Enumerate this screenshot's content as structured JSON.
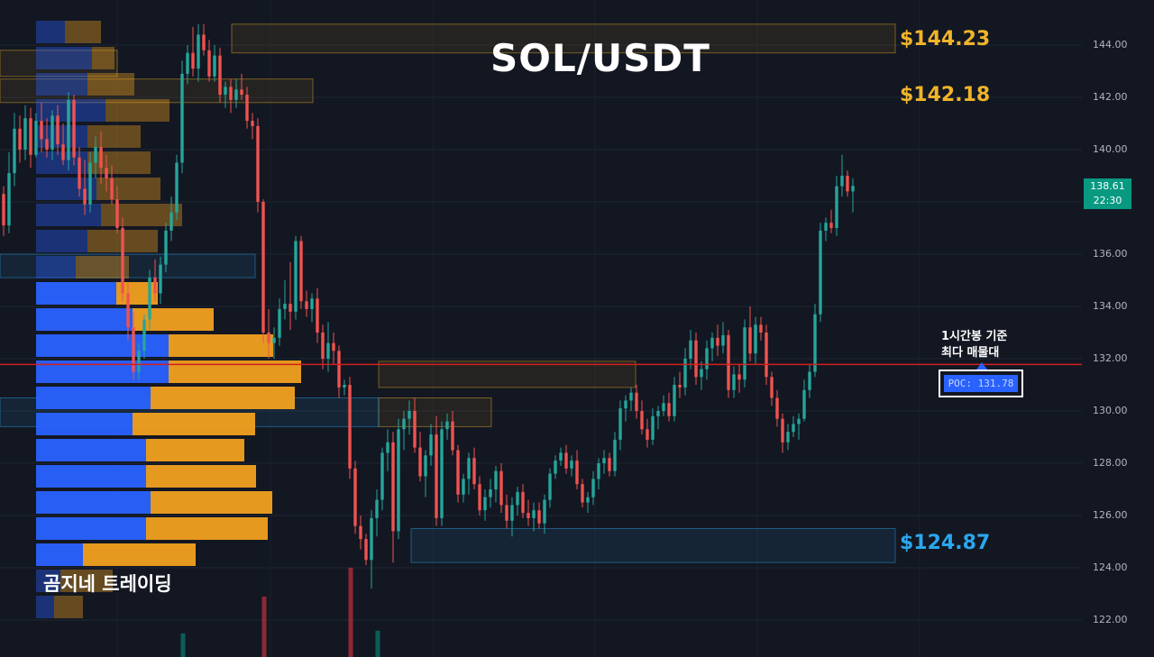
{
  "chart_data": {
    "type": "candlestick",
    "title": "SOL/USDT",
    "ylim": [
      121.5,
      145.5
    ],
    "y_ticks": [
      "144.00",
      "142.00",
      "140.00",
      "138.00",
      "136.00",
      "134.00",
      "132.00",
      "130.00",
      "128.00",
      "126.00",
      "124.00",
      "122.00"
    ],
    "last_price": {
      "price": "138.61",
      "time": "22:30"
    },
    "levels": [
      {
        "label": "$144.23",
        "price": 144.23,
        "color": "#f0b429"
      },
      {
        "label": "$142.18",
        "price": 142.18,
        "color": "#f0b429"
      },
      {
        "label": "$124.87",
        "price": 124.87,
        "color": "#2aa7ee"
      }
    ],
    "poc": {
      "label": "POC: 131.78",
      "price": 131.78,
      "note_line1": "1시간봉 기준",
      "note_line2": "최다 매물대"
    },
    "volume_profile": {
      "bin_prices": [
        144.5,
        143.5,
        142.5,
        141.5,
        140.5,
        139.5,
        138.5,
        137.5,
        136.5,
        135.5,
        134.5,
        133.5,
        132.5,
        131.5,
        130.5,
        129.5,
        128.5,
        127.5,
        126.5,
        125.5,
        124.5,
        123.5,
        122.5
      ],
      "buy": [
        32,
        62,
        57,
        77,
        57,
        57,
        67,
        72,
        57,
        44,
        89,
        107,
        147,
        147,
        127,
        107,
        122,
        122,
        127,
        122,
        52,
        27,
        20
      ],
      "sell": [
        40,
        25,
        52,
        71,
        59,
        70,
        71,
        90,
        78,
        59,
        46,
        90,
        116,
        147,
        160,
        136,
        109,
        122,
        135,
        135,
        125,
        58,
        32
      ],
      "highlighted_bins": [
        10,
        11,
        12,
        13,
        14,
        15,
        16,
        17,
        18,
        19,
        20
      ]
    },
    "zones": [
      {
        "price_top": 144.8,
        "price_bottom": 143.7,
        "color": "#f0b429"
      },
      {
        "price_top": 142.7,
        "price_bottom": 141.8,
        "color": "#f0b429"
      },
      {
        "price_top": 131.9,
        "price_bottom": 130.9,
        "color": "#f0b429"
      },
      {
        "price_top": 130.5,
        "price_bottom": 129.4,
        "color": "#f0b429"
      },
      {
        "price_top": 125.5,
        "price_bottom": 124.2,
        "color": "#2aa7ee"
      },
      {
        "price_top": 143.8,
        "price_bottom": 142.8,
        "color": "#f0b429"
      },
      {
        "price_top": 136.0,
        "price_bottom": 135.1,
        "color": "#2aa7ee"
      },
      {
        "price_top": 130.5,
        "price_bottom": 129.4,
        "color": "#2aa7ee"
      }
    ],
    "candles": [
      [
        138.3,
        138.6,
        136.7,
        137.1
      ],
      [
        137.1,
        139.9,
        136.8,
        139.1
      ],
      [
        139.1,
        141.4,
        138.6,
        140.8
      ],
      [
        140.8,
        141.3,
        139.5,
        140.0
      ],
      [
        140.0,
        141.7,
        139.6,
        141.2
      ],
      [
        141.2,
        141.6,
        139.3,
        139.8
      ],
      [
        139.8,
        141.4,
        139.7,
        141.1
      ],
      [
        141.1,
        141.8,
        139.9,
        140.4
      ],
      [
        140.4,
        141.2,
        139.7,
        140.0
      ],
      [
        140.0,
        141.5,
        139.6,
        141.3
      ],
      [
        141.3,
        141.7,
        139.8,
        140.2
      ],
      [
        140.2,
        141.0,
        139.4,
        139.6
      ],
      [
        139.6,
        142.2,
        139.2,
        141.9
      ],
      [
        141.9,
        142.1,
        139.4,
        139.7
      ],
      [
        139.7,
        140.1,
        138.2,
        138.5
      ],
      [
        138.5,
        139.6,
        137.5,
        137.9
      ],
      [
        137.9,
        139.9,
        137.6,
        139.5
      ],
      [
        139.5,
        140.5,
        138.9,
        140.1
      ],
      [
        140.1,
        140.7,
        138.7,
        139.3
      ],
      [
        139.3,
        139.8,
        138.4,
        138.9
      ],
      [
        138.9,
        139.4,
        137.9,
        138.1
      ],
      [
        138.1,
        138.6,
        136.8,
        137.0
      ],
      [
        137.0,
        137.4,
        134.2,
        134.5
      ],
      [
        134.5,
        134.9,
        132.7,
        133.2
      ],
      [
        133.2,
        133.8,
        131.2,
        131.5
      ],
      [
        131.5,
        132.6,
        131.2,
        132.3
      ],
      [
        132.3,
        133.7,
        132.0,
        133.5
      ],
      [
        133.5,
        135.4,
        133.1,
        135.1
      ],
      [
        135.1,
        135.8,
        134.2,
        134.5
      ],
      [
        134.5,
        135.9,
        134.1,
        135.6
      ],
      [
        135.6,
        137.2,
        135.3,
        136.9
      ],
      [
        136.9,
        138.2,
        136.5,
        137.6
      ],
      [
        137.6,
        139.8,
        137.3,
        139.5
      ],
      [
        139.5,
        143.4,
        139.1,
        142.9
      ],
      [
        142.9,
        144.0,
        142.5,
        143.7
      ],
      [
        143.7,
        144.7,
        142.8,
        143.1
      ],
      [
        143.1,
        144.8,
        142.6,
        144.4
      ],
      [
        144.4,
        144.8,
        143.6,
        143.8
      ],
      [
        143.8,
        144.2,
        142.6,
        142.8
      ],
      [
        142.8,
        144.0,
        142.6,
        143.6
      ],
      [
        143.6,
        143.9,
        141.8,
        142.1
      ],
      [
        142.1,
        142.6,
        141.6,
        142.4
      ],
      [
        142.4,
        142.7,
        141.4,
        141.9
      ],
      [
        141.9,
        142.7,
        141.6,
        142.3
      ],
      [
        142.3,
        142.9,
        141.9,
        142.1
      ],
      [
        142.1,
        142.4,
        140.8,
        141.1
      ],
      [
        141.1,
        141.4,
        140.4,
        140.9
      ],
      [
        140.9,
        141.2,
        137.6,
        138.0
      ],
      [
        138.0,
        138.1,
        132.6,
        133.0
      ],
      [
        133.0,
        133.9,
        132.0,
        132.6
      ],
      [
        132.6,
        133.2,
        132.0,
        132.8
      ],
      [
        132.8,
        134.3,
        132.5,
        133.9
      ],
      [
        133.9,
        135.0,
        133.5,
        134.1
      ],
      [
        134.1,
        135.7,
        133.1,
        133.8
      ],
      [
        133.8,
        136.7,
        133.5,
        136.5
      ],
      [
        136.5,
        136.7,
        133.9,
        134.2
      ],
      [
        134.2,
        134.6,
        133.6,
        133.9
      ],
      [
        133.9,
        134.5,
        133.4,
        134.3
      ],
      [
        134.3,
        134.7,
        132.6,
        133.0
      ],
      [
        133.0,
        133.3,
        131.6,
        132.0
      ],
      [
        132.0,
        133.4,
        131.5,
        132.6
      ],
      [
        132.6,
        133.0,
        131.8,
        132.3
      ],
      [
        132.3,
        132.5,
        130.5,
        130.9
      ],
      [
        130.9,
        131.2,
        130.6,
        131.0
      ],
      [
        131.0,
        131.3,
        127.4,
        127.8
      ],
      [
        127.8,
        128.1,
        125.3,
        125.6
      ],
      [
        125.6,
        126.0,
        124.7,
        125.1
      ],
      [
        125.1,
        125.3,
        124.1,
        124.3
      ],
      [
        124.3,
        126.2,
        123.2,
        125.9
      ],
      [
        125.9,
        127.0,
        125.2,
        126.6
      ],
      [
        126.6,
        128.6,
        126.2,
        128.4
      ],
      [
        128.4,
        129.3,
        127.7,
        128.8
      ],
      [
        128.8,
        129.2,
        124.2,
        125.4
      ],
      [
        125.4,
        129.7,
        125.1,
        129.3
      ],
      [
        129.3,
        130.0,
        128.5,
        129.7
      ],
      [
        129.7,
        130.4,
        129.1,
        130.0
      ],
      [
        130.0,
        130.5,
        128.4,
        128.6
      ],
      [
        128.6,
        129.2,
        127.3,
        127.5
      ],
      [
        127.5,
        128.5,
        126.7,
        128.3
      ],
      [
        128.3,
        129.5,
        127.9,
        129.1
      ],
      [
        129.1,
        129.8,
        125.6,
        125.9
      ],
      [
        125.9,
        129.6,
        125.6,
        129.3
      ],
      [
        129.3,
        129.9,
        128.9,
        129.6
      ],
      [
        129.6,
        130.0,
        128.3,
        128.5
      ],
      [
        128.5,
        128.7,
        126.5,
        126.8
      ],
      [
        126.8,
        127.6,
        126.5,
        127.4
      ],
      [
        127.4,
        128.4,
        126.8,
        128.2
      ],
      [
        128.2,
        128.6,
        127.0,
        127.2
      ],
      [
        127.2,
        127.5,
        126.0,
        126.2
      ],
      [
        126.2,
        127.0,
        125.8,
        126.7
      ],
      [
        126.7,
        127.4,
        126.3,
        127.0
      ],
      [
        127.0,
        127.9,
        126.5,
        127.7
      ],
      [
        127.7,
        128.0,
        126.1,
        126.4
      ],
      [
        126.4,
        126.8,
        125.5,
        125.8
      ],
      [
        125.8,
        126.7,
        125.2,
        126.4
      ],
      [
        126.4,
        127.1,
        126.0,
        126.9
      ],
      [
        126.9,
        127.2,
        125.9,
        126.1
      ],
      [
        126.1,
        126.6,
        125.6,
        125.9
      ],
      [
        125.9,
        126.5,
        125.4,
        126.2
      ],
      [
        126.2,
        126.5,
        125.5,
        125.7
      ],
      [
        125.7,
        126.8,
        125.3,
        126.6
      ],
      [
        126.6,
        127.8,
        126.3,
        127.6
      ],
      [
        127.6,
        128.3,
        127.4,
        128.1
      ],
      [
        128.1,
        128.6,
        127.9,
        128.4
      ],
      [
        128.4,
        128.7,
        127.6,
        127.8
      ],
      [
        127.8,
        128.3,
        127.5,
        128.1
      ],
      [
        128.1,
        128.5,
        127.0,
        127.2
      ],
      [
        127.2,
        127.4,
        126.3,
        126.5
      ],
      [
        126.5,
        126.9,
        126.1,
        126.7
      ],
      [
        126.7,
        127.7,
        126.4,
        127.4
      ],
      [
        127.4,
        128.2,
        127.0,
        128.0
      ],
      [
        128.0,
        128.5,
        127.6,
        128.2
      ],
      [
        128.2,
        128.4,
        127.5,
        127.7
      ],
      [
        127.7,
        129.2,
        127.5,
        128.9
      ],
      [
        128.9,
        130.4,
        128.5,
        130.1
      ],
      [
        130.1,
        130.6,
        129.6,
        130.4
      ],
      [
        130.4,
        130.9,
        130.0,
        130.7
      ],
      [
        130.7,
        131.0,
        129.7,
        130.0
      ],
      [
        130.0,
        130.4,
        129.1,
        129.3
      ],
      [
        129.3,
        129.7,
        128.6,
        128.9
      ],
      [
        128.9,
        130.1,
        128.7,
        129.8
      ],
      [
        129.8,
        130.2,
        129.3,
        130.0
      ],
      [
        130.0,
        130.6,
        129.8,
        130.3
      ],
      [
        130.3,
        130.7,
        129.6,
        129.8
      ],
      [
        129.8,
        131.3,
        129.6,
        131.0
      ],
      [
        131.0,
        131.5,
        130.5,
        130.9
      ],
      [
        130.9,
        132.4,
        130.6,
        132.0
      ],
      [
        132.0,
        133.1,
        131.6,
        132.7
      ],
      [
        132.7,
        133.0,
        131.0,
        131.3
      ],
      [
        131.3,
        131.9,
        130.8,
        131.6
      ],
      [
        131.6,
        132.7,
        131.2,
        132.4
      ],
      [
        132.4,
        133.0,
        131.9,
        132.8
      ],
      [
        132.8,
        133.3,
        132.1,
        132.5
      ],
      [
        132.5,
        133.4,
        132.2,
        132.9
      ],
      [
        132.9,
        133.1,
        130.5,
        130.8
      ],
      [
        130.8,
        131.7,
        130.5,
        131.4
      ],
      [
        131.4,
        131.8,
        130.7,
        131.2
      ],
      [
        131.2,
        133.5,
        130.9,
        133.2
      ],
      [
        133.2,
        134.0,
        131.9,
        132.2
      ],
      [
        132.2,
        133.6,
        131.8,
        133.3
      ],
      [
        133.3,
        133.6,
        132.7,
        133.0
      ],
      [
        133.0,
        133.3,
        131.0,
        131.3
      ],
      [
        131.3,
        131.5,
        130.2,
        130.5
      ],
      [
        130.5,
        130.8,
        129.4,
        129.7
      ],
      [
        129.7,
        129.9,
        128.4,
        128.8
      ],
      [
        128.8,
        129.5,
        128.5,
        129.2
      ],
      [
        129.2,
        129.8,
        129.0,
        129.5
      ],
      [
        129.5,
        129.9,
        128.9,
        129.7
      ],
      [
        129.7,
        131.2,
        129.6,
        130.8
      ],
      [
        130.8,
        131.8,
        130.5,
        131.5
      ],
      [
        131.5,
        134.1,
        131.3,
        133.7
      ],
      [
        133.7,
        137.2,
        133.4,
        136.9
      ],
      [
        136.9,
        137.4,
        136.5,
        137.2
      ],
      [
        137.2,
        137.7,
        136.8,
        137.0
      ],
      [
        137.0,
        139.0,
        136.7,
        138.6
      ],
      [
        138.6,
        139.8,
        138.2,
        139.0
      ],
      [
        139.0,
        139.2,
        138.2,
        138.4
      ],
      [
        138.4,
        138.9,
        137.6,
        138.61
      ]
    ],
    "volume_spikes": [
      {
        "index": 33,
        "value": 0.18,
        "color": "#089981"
      },
      {
        "index": 48,
        "value": 0.46,
        "color": "#f23645"
      },
      {
        "index": 64,
        "value": 0.68,
        "color": "#f23645"
      },
      {
        "index": 69,
        "value": 0.2,
        "color": "#089981"
      }
    ]
  },
  "colors": {
    "up": "#26a69a",
    "down": "#ef5350",
    "profile_buy": "#2962ff",
    "profile_sell": "#f0a020",
    "poc_line": "#d21f1f",
    "background": "#131722"
  },
  "labels": {
    "title": "SOL/USDT",
    "brand": "곰지네 트레이딩",
    "level_1": "$144.23",
    "level_2": "$142.18",
    "level_3": "$124.87",
    "poc_note_1": "1시간봉 기준",
    "poc_note_2": "최다 매물대",
    "poc_label": "POC: 131.78",
    "last_price": "138.61",
    "last_time": "22:30"
  }
}
